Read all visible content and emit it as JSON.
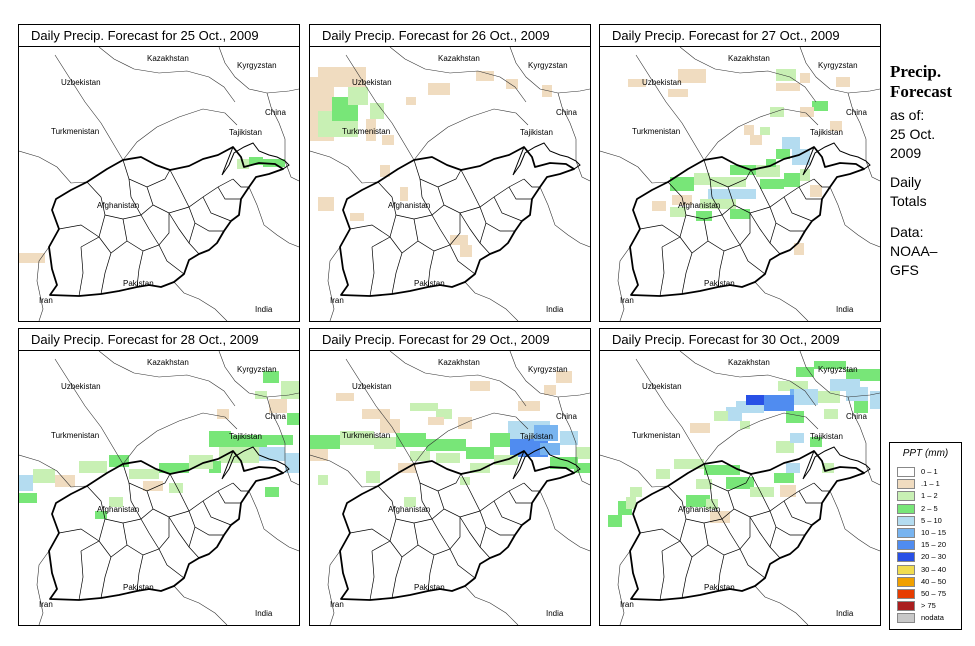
{
  "panels": [
    {
      "title": "Daily Precip. Forecast for  25 Oct., 2009"
    },
    {
      "title": "Daily Precip. Forecast for  26 Oct., 2009"
    },
    {
      "title": "Daily Precip. Forecast for  27 Oct., 2009"
    },
    {
      "title": "Daily Precip. Forecast for  28 Oct., 2009"
    },
    {
      "title": "Daily Precip. Forecast for  29 Oct., 2009"
    },
    {
      "title": "Daily Precip. Forecast for  30 Oct., 2009"
    }
  ],
  "map_labels": {
    "uzbekistan": "Uzbekistan",
    "kazakhstan": "Kazakhstan",
    "kyrgyzstan": "Kyrgyzstan",
    "china": "China",
    "turkmenistan": "Turkmenistan",
    "tajikistan": "Tajikistan",
    "afghanistan": "Afghanistan",
    "pakistan": "Pakistan",
    "iran": "Iran",
    "india": "India"
  },
  "sidebar": {
    "heading_line1": "Precip.",
    "heading_line2": "Forecast",
    "as_of": "as of:",
    "date_line1": "25 Oct.",
    "date_line2": "2009",
    "daily_line1": "Daily",
    "daily_line2": "Totals",
    "data_line1": "Data:",
    "data_line2": "NOAA–",
    "data_line3": "GFS"
  },
  "legend": {
    "title": "PPT (mm)",
    "items": [
      {
        "label": "0 – 1",
        "color": "#ffffff"
      },
      {
        "label": ".1 – 1",
        "color": "#f0dcc0"
      },
      {
        "label": "1 – 2",
        "color": "#c8f0b4"
      },
      {
        "label": "2 – 5",
        "color": "#78e678"
      },
      {
        "label": "5 – 10",
        "color": "#b4dcf0"
      },
      {
        "label": "10 – 15",
        "color": "#78b4f0"
      },
      {
        "label": "15 – 20",
        "color": "#508cf0"
      },
      {
        "label": "20 – 30",
        "color": "#2850e6"
      },
      {
        "label": "30 – 40",
        "color": "#f0dc50"
      },
      {
        "label": "40 – 50",
        "color": "#f0a000"
      },
      {
        "label": "50 – 75",
        "color": "#e63c00"
      },
      {
        "label": "> 75",
        "color": "#aa1e1e"
      },
      {
        "label": "nodata",
        "color": "#c8c8c8"
      }
    ]
  }
}
